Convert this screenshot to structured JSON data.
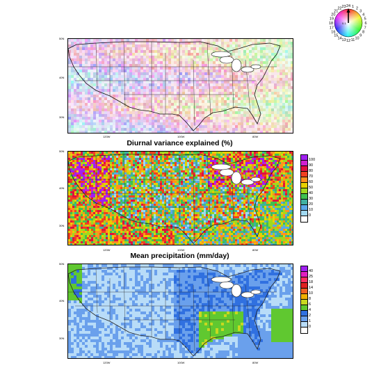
{
  "panels": [
    {
      "id": "phase",
      "title": "",
      "lat_labels": [
        "50N",
        "40N",
        "30N"
      ],
      "lon_labels": [
        "120W",
        "100W",
        "80W"
      ]
    },
    {
      "id": "variance",
      "title": "Diurnal variance explained (%)",
      "lat_labels": [
        "50N",
        "40N",
        "30N"
      ],
      "lon_labels": [
        "120W",
        "100W",
        "80W"
      ],
      "colorbar_labels": [
        "100",
        "90",
        "80",
        "70",
        "60",
        "50",
        "40",
        "30",
        "20",
        "10",
        "0"
      ],
      "colorbar_colors": [
        "#a020f0",
        "#d020d0",
        "#e01040",
        "#f04020",
        "#ff9020",
        "#e8d000",
        "#a0d820",
        "#40c050",
        "#40b0a0",
        "#5aa8e8",
        "#a0d8f0",
        "#ffffff"
      ]
    },
    {
      "id": "precip",
      "title": "Mean precipitation (mm/day)",
      "lat_labels": [
        "50N",
        "40N",
        "30N"
      ],
      "lon_labels": [
        "120W",
        "100W",
        "80W"
      ],
      "colorbar_labels": [
        "40",
        "25",
        "18",
        "14",
        "10",
        "8",
        "6",
        "4",
        "2",
        "1",
        "0"
      ],
      "colorbar_colors": [
        "#a020f0",
        "#e020c0",
        "#ff3060",
        "#e02020",
        "#f06020",
        "#f0b000",
        "#c8d820",
        "#60c830",
        "#3070e0",
        "#6aa0ec",
        "#b8dcf8",
        "#ffffff"
      ]
    }
  ],
  "phase_wheel": {
    "hour_labels": [
      "1",
      "2",
      "3",
      "4",
      "5",
      "6",
      "7",
      "8",
      "9",
      "10",
      "11",
      "12",
      "13",
      "14",
      "15",
      "16",
      "17",
      "18",
      "19",
      "20",
      "21",
      "22",
      "23",
      "24"
    ],
    "center_label": "0.1"
  }
}
